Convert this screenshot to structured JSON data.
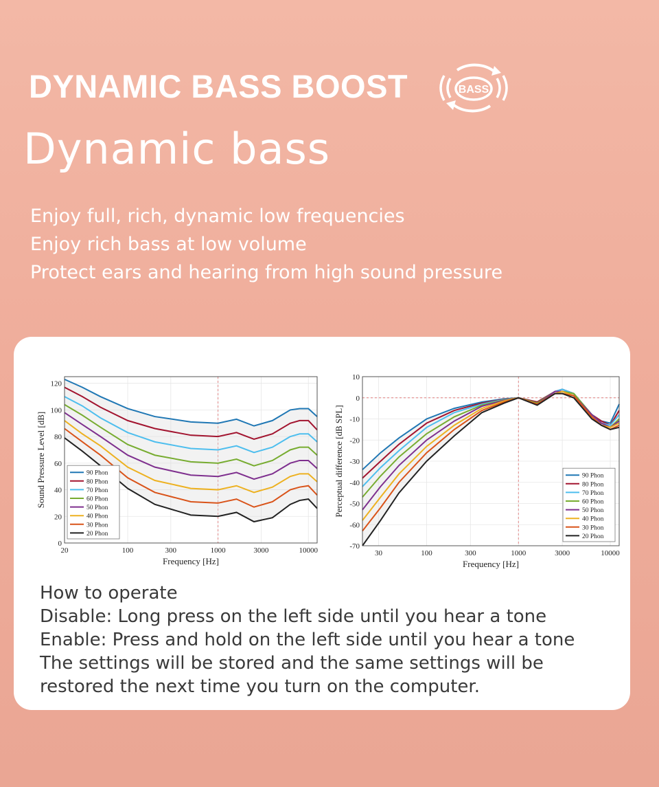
{
  "header": {
    "headline": "DYNAMIC BASS BOOST",
    "badge_label": "BASS",
    "subtitle": "Dynamic bass"
  },
  "features": [
    "Enjoy full, rich, dynamic low frequencies",
    "Enjoy rich bass at low volume",
    "Protect ears and hearing from high sound pressure"
  ],
  "instructions": [
    "How to operate",
    "Disable: Long press on the left side until you hear a tone",
    "Enable: Press and hold on the left side until you hear a tone",
    "The settings will be stored and the same settings will be",
    "restored the next time you turn on the computer."
  ],
  "colors": {
    "background": "#f0b09e",
    "card": "#ffffff",
    "series": [
      "#1f77b4",
      "#a2142f",
      "#4dbeee",
      "#77ac30",
      "#7e2f8e",
      "#edb120",
      "#d95319",
      "#222222"
    ]
  },
  "chart_data": [
    {
      "type": "line",
      "xlabel": "Frequency [Hz]",
      "ylabel": "Sound Pressure Level [dB]",
      "xscale": "log",
      "xlim": [
        20,
        12500
      ],
      "ylim": [
        0,
        125
      ],
      "xticks": [
        20,
        100,
        300,
        1000,
        3000,
        10000
      ],
      "xtick_labels": [
        "20",
        "100",
        "300",
        "1000",
        "3000",
        "10000"
      ],
      "yticks": [
        0,
        20,
        40,
        60,
        80,
        100,
        120
      ],
      "ytick_labels": [
        "0",
        "20",
        "40",
        "60",
        "80",
        "100",
        "120"
      ],
      "grid": true,
      "legend": "bottom-left",
      "reference_line_x": 1000,
      "x": [
        20,
        31.5,
        50,
        100,
        200,
        500,
        1000,
        1600,
        2500,
        4000,
        6300,
        8000,
        10000,
        12500
      ],
      "series": [
        {
          "name": "90 Phon",
          "values": [
            123,
            117,
            110,
            101,
            95,
            91,
            90,
            93,
            88,
            92,
            100,
            101,
            101,
            95
          ]
        },
        {
          "name": "80 Phon",
          "values": [
            117,
            110,
            102,
            92,
            86,
            81,
            80,
            83,
            78,
            82,
            90,
            92,
            92,
            85
          ]
        },
        {
          "name": "70 Phon",
          "values": [
            110,
            103,
            94,
            83,
            76,
            71,
            70,
            73,
            68,
            72,
            80,
            82,
            82,
            76
          ]
        },
        {
          "name": "60 Phon",
          "values": [
            104,
            96,
            87,
            74,
            66,
            61,
            60,
            63,
            58,
            62,
            70,
            72,
            72,
            66
          ]
        },
        {
          "name": "50 Phon",
          "values": [
            98,
            89,
            80,
            66,
            57,
            51,
            50,
            53,
            48,
            52,
            60,
            62,
            62,
            56
          ]
        },
        {
          "name": "40 Phon",
          "values": [
            92,
            82,
            73,
            57,
            47,
            41,
            40,
            43,
            38,
            42,
            50,
            52,
            52,
            46
          ]
        },
        {
          "name": "30 Phon",
          "values": [
            86,
            76,
            66,
            49,
            38,
            31,
            30,
            33,
            27,
            31,
            40,
            42,
            43,
            36
          ]
        },
        {
          "name": "20 Phon",
          "values": [
            79,
            69,
            58,
            41,
            29,
            21,
            20,
            23,
            16,
            19,
            29,
            32,
            33,
            26
          ]
        }
      ]
    },
    {
      "type": "line",
      "xlabel": "Frequency [Hz]",
      "ylabel": "Perceptual difference [dB SPL]",
      "xscale": "log",
      "xlim": [
        20,
        12500
      ],
      "ylim": [
        -70,
        10
      ],
      "xticks": [
        30,
        100,
        300,
        1000,
        3000,
        10000
      ],
      "xtick_labels": [
        "30",
        "100",
        "300",
        "1000",
        "3000",
        "10000"
      ],
      "yticks": [
        10,
        0,
        -10,
        -20,
        -30,
        -40,
        -50,
        -60,
        -70
      ],
      "ytick_labels": [
        "10",
        "0",
        "-10",
        "-20",
        "-30",
        "-40",
        "-50",
        "-60",
        "-70"
      ],
      "grid": true,
      "legend": "bottom-right",
      "reference_line_x": 1000,
      "x": [
        20,
        31.5,
        50,
        100,
        200,
        400,
        700,
        1000,
        1600,
        2500,
        3000,
        4000,
        6300,
        8000,
        10000,
        12500
      ],
      "series": [
        {
          "name": "90 Phon",
          "values": [
            -34,
            -26,
            -19,
            -10,
            -5,
            -2,
            -0.5,
            0,
            -2,
            3,
            4,
            2,
            -8,
            -11,
            -12,
            -3
          ]
        },
        {
          "name": "80 Phon",
          "values": [
            -38,
            -30,
            -22,
            -12,
            -6,
            -2.5,
            -0.7,
            0,
            -2,
            3,
            4,
            2,
            -8,
            -11,
            -13,
            -6
          ]
        },
        {
          "name": "70 Phon",
          "values": [
            -42,
            -33,
            -25,
            -14,
            -7,
            -3,
            -0.8,
            0,
            -2.5,
            3,
            4,
            2,
            -8,
            -12,
            -13,
            -8
          ]
        },
        {
          "name": "60 Phon",
          "values": [
            -47,
            -37,
            -28,
            -17,
            -9,
            -3.5,
            -1,
            0,
            -2.5,
            3,
            3,
            2,
            -8,
            -12,
            -14,
            -10
          ]
        },
        {
          "name": "50 Phon",
          "values": [
            -53,
            -42,
            -32,
            -20,
            -11,
            -4,
            -1.2,
            0,
            -3,
            3,
            3,
            1,
            -8,
            -12,
            -14,
            -11
          ]
        },
        {
          "name": "40 Phon",
          "values": [
            -58,
            -47,
            -36,
            -23,
            -13,
            -5,
            -1.5,
            0,
            -3,
            2,
            3,
            1,
            -9,
            -13,
            -14,
            -12
          ]
        },
        {
          "name": "30 Phon",
          "values": [
            -63,
            -52,
            -40,
            -26,
            -15,
            -6,
            -2,
            0,
            -3,
            2,
            2,
            1,
            -9,
            -13,
            -15,
            -13
          ]
        },
        {
          "name": "20 Phon",
          "values": [
            -70,
            -58,
            -45,
            -30,
            -18,
            -7,
            -2.5,
            0,
            -3.5,
            2,
            2,
            0,
            -10,
            -13,
            -15,
            -14
          ]
        }
      ]
    }
  ]
}
